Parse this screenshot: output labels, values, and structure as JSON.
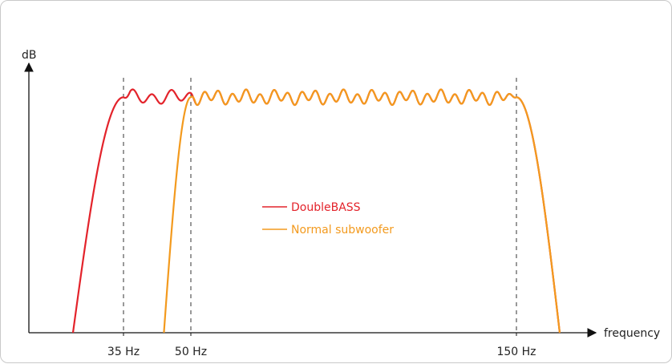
{
  "chart_data": {
    "type": "line",
    "xlabel": "frequency",
    "ylabel": "dB",
    "x_ticks": [
      {
        "label": "35 Hz",
        "value": 35
      },
      {
        "label": "50 Hz",
        "value": 50
      },
      {
        "label": "150 Hz",
        "value": 150
      }
    ],
    "reference_lines_at": [
      35,
      50,
      150
    ],
    "grid": false,
    "legend_placement": "center",
    "series": [
      {
        "name": "DoubleBASS",
        "color": "#e3232b",
        "rolloff_start": 26,
        "passband_start": 35,
        "passband_end": 150,
        "rolloff_end": 160,
        "passband_level": 0.96,
        "ripple": true
      },
      {
        "name": "Normal subwoofer",
        "color": "#f39a1e",
        "rolloff_start": 44,
        "passband_start": 50,
        "passband_end": 150,
        "rolloff_end": 160,
        "passband_level": 0.96,
        "ripple": true
      }
    ]
  }
}
